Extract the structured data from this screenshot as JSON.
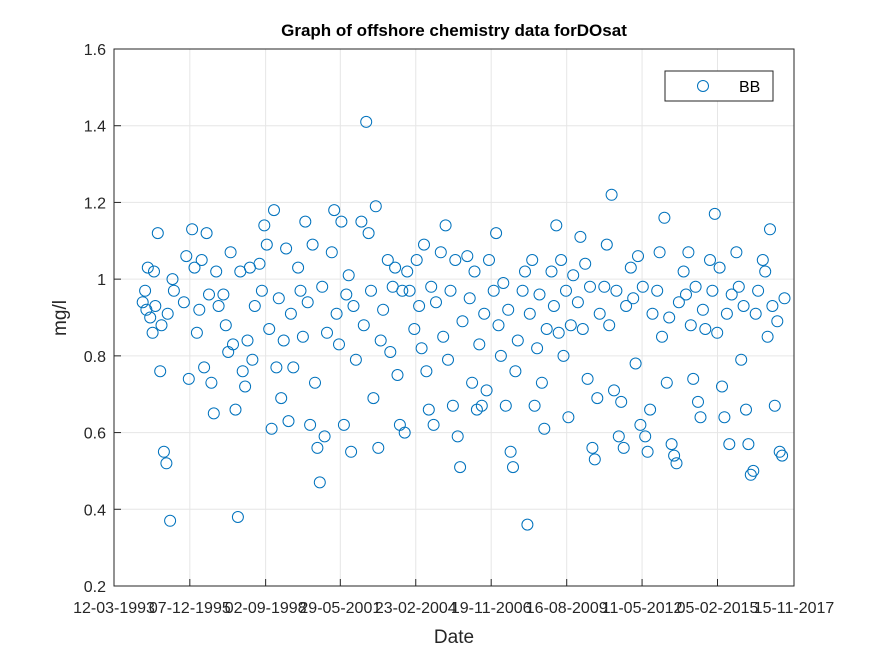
{
  "chart_data": {
    "type": "scatter",
    "title": "Graph of offshore chemistry data forDOsat",
    "xlabel": "Date",
    "ylabel": "mg/l",
    "ylim": [
      0.2,
      1.6
    ],
    "yticks": [
      "0.2",
      "0.4",
      "0.6",
      "0.8",
      "1",
      "1.2",
      "1.4",
      "1.6"
    ],
    "xlim": [
      "1993-03-12",
      "2017-11-15"
    ],
    "xtick_dates": [
      "1993-03-12",
      "1995-12-12",
      "1998-09-12",
      "2001-05-29",
      "2004-02-23",
      "2006-11-19",
      "2009-08-16",
      "2012-05-11",
      "2015-02-05",
      "2017-11-15"
    ],
    "xtick_labels": [
      "12-03-1993",
      "07-12-1995",
      "02-09-1998",
      "29-05-2001",
      "23-02-2004",
      "19-11-2006",
      "16-08-2009",
      "11-05-2012",
      "05-02-2015",
      "15-11-2017"
    ],
    "grid": true,
    "marker": "open-circle",
    "color": "#0072BD",
    "legend": {
      "position": "top-right",
      "entries": [
        "BB"
      ]
    },
    "series": [
      {
        "name": "BB",
        "points": [
          [
            "1994-03-27",
            0.94
          ],
          [
            "1994-04-28",
            0.97
          ],
          [
            "1994-05-16",
            0.92
          ],
          [
            "1994-06-03",
            1.03
          ],
          [
            "1994-07-05",
            0.9
          ],
          [
            "1994-08-06",
            0.86
          ],
          [
            "1994-08-24",
            1.02
          ],
          [
            "1994-09-11",
            0.93
          ],
          [
            "1994-10-13",
            1.12
          ],
          [
            "1994-11-14",
            0.76
          ],
          [
            "1994-12-02",
            0.88
          ],
          [
            "1995-01-03",
            0.55
          ],
          [
            "1995-02-04",
            0.52
          ],
          [
            "1995-02-22",
            0.91
          ],
          [
            "1995-03-26",
            0.37
          ],
          [
            "1995-04-27",
            1.0
          ],
          [
            "1995-05-15",
            0.97
          ],
          [
            "1995-09-25",
            0.94
          ],
          [
            "1995-10-27",
            1.06
          ],
          [
            "1995-11-28",
            0.74
          ],
          [
            "1996-01-11",
            1.13
          ],
          [
            "1996-02-12",
            1.03
          ],
          [
            "1996-03-15",
            0.86
          ],
          [
            "1996-04-16",
            0.92
          ],
          [
            "1996-05-18",
            1.05
          ],
          [
            "1996-06-19",
            0.77
          ],
          [
            "1996-07-21",
            1.12
          ],
          [
            "1996-08-22",
            0.96
          ],
          [
            "1996-09-23",
            0.73
          ],
          [
            "1996-10-25",
            0.65
          ],
          [
            "1996-11-26",
            1.02
          ],
          [
            "1996-12-28",
            0.93
          ],
          [
            "1997-03-01",
            0.96
          ],
          [
            "1997-04-02",
            0.88
          ],
          [
            "1997-05-04",
            0.81
          ],
          [
            "1997-06-05",
            1.07
          ],
          [
            "1997-07-07",
            0.83
          ],
          [
            "1997-08-08",
            0.66
          ],
          [
            "1997-09-09",
            0.38
          ],
          [
            "1997-10-11",
            1.02
          ],
          [
            "1997-11-12",
            0.76
          ],
          [
            "1997-12-14",
            0.72
          ],
          [
            "1998-01-15",
            0.84
          ],
          [
            "1998-02-16",
            1.03
          ],
          [
            "1998-03-20",
            0.79
          ],
          [
            "1998-04-21",
            0.93
          ],
          [
            "1998-06-23",
            1.04
          ],
          [
            "1998-07-25",
            0.97
          ],
          [
            "1998-08-26",
            1.14
          ],
          [
            "1998-09-27",
            1.09
          ],
          [
            "1998-10-29",
            0.87
          ],
          [
            "1998-11-30",
            0.61
          ],
          [
            "1999-01-01",
            1.18
          ],
          [
            "1999-02-02",
            0.77
          ],
          [
            "1999-03-06",
            0.95
          ],
          [
            "1999-04-07",
            0.69
          ],
          [
            "1999-05-09",
            0.84
          ],
          [
            "1999-06-10",
            1.08
          ],
          [
            "1999-07-12",
            0.63
          ],
          [
            "1999-08-13",
            0.91
          ],
          [
            "1999-09-14",
            0.77
          ],
          [
            "1999-11-16",
            1.03
          ],
          [
            "1999-12-18",
            0.97
          ],
          [
            "2000-01-19",
            0.85
          ],
          [
            "2000-02-20",
            1.15
          ],
          [
            "2000-03-23",
            0.94
          ],
          [
            "2000-04-24",
            0.62
          ],
          [
            "2000-05-26",
            1.09
          ],
          [
            "2000-06-27",
            0.73
          ],
          [
            "2000-07-29",
            0.56
          ],
          [
            "2000-08-30",
            0.47
          ],
          [
            "2000-10-01",
            0.98
          ],
          [
            "2000-11-02",
            0.59
          ],
          [
            "2000-12-04",
            0.86
          ],
          [
            "2001-02-05",
            1.07
          ],
          [
            "2001-03-09",
            1.18
          ],
          [
            "2001-04-10",
            0.91
          ],
          [
            "2001-05-12",
            0.83
          ],
          [
            "2001-06-13",
            1.15
          ],
          [
            "2001-07-15",
            0.62
          ],
          [
            "2001-08-16",
            0.96
          ],
          [
            "2001-09-17",
            1.01
          ],
          [
            "2001-10-19",
            0.55
          ],
          [
            "2001-11-20",
            0.93
          ],
          [
            "2001-12-22",
            0.79
          ],
          [
            "2002-03-04",
            1.15
          ],
          [
            "2002-04-05",
            0.88
          ],
          [
            "2002-05-07",
            1.41
          ],
          [
            "2002-06-08",
            1.12
          ],
          [
            "2002-07-10",
            0.97
          ],
          [
            "2002-08-11",
            0.69
          ],
          [
            "2002-09-12",
            1.19
          ],
          [
            "2002-10-14",
            0.56
          ],
          [
            "2002-11-15",
            0.84
          ],
          [
            "2002-12-17",
            0.92
          ],
          [
            "2003-02-18",
            1.05
          ],
          [
            "2003-03-22",
            0.81
          ],
          [
            "2003-04-23",
            0.98
          ],
          [
            "2003-05-25",
            1.03
          ],
          [
            "2003-06-26",
            0.75
          ],
          [
            "2003-07-28",
            0.62
          ],
          [
            "2003-08-29",
            0.97
          ],
          [
            "2003-09-30",
            0.6
          ],
          [
            "2003-11-01",
            1.02
          ],
          [
            "2003-12-03",
            0.97
          ],
          [
            "2004-02-04",
            0.87
          ],
          [
            "2004-03-07",
            1.05
          ],
          [
            "2004-04-08",
            0.93
          ],
          [
            "2004-05-10",
            0.82
          ],
          [
            "2004-06-11",
            1.09
          ],
          [
            "2004-07-13",
            0.76
          ],
          [
            "2004-08-14",
            0.66
          ],
          [
            "2004-09-15",
            0.98
          ],
          [
            "2004-10-17",
            0.62
          ],
          [
            "2004-11-18",
            0.94
          ],
          [
            "2005-01-20",
            1.07
          ],
          [
            "2005-02-21",
            0.85
          ],
          [
            "2005-03-25",
            1.14
          ],
          [
            "2005-04-26",
            0.79
          ],
          [
            "2005-05-28",
            0.97
          ],
          [
            "2005-06-29",
            0.67
          ],
          [
            "2005-07-31",
            1.05
          ],
          [
            "2005-09-01",
            0.59
          ],
          [
            "2005-10-03",
            0.51
          ],
          [
            "2005-11-04",
            0.89
          ],
          [
            "2006-01-06",
            1.06
          ],
          [
            "2006-02-07",
            0.95
          ],
          [
            "2006-03-11",
            0.73
          ],
          [
            "2006-04-12",
            1.02
          ],
          [
            "2006-05-14",
            0.66
          ],
          [
            "2006-06-15",
            0.83
          ],
          [
            "2006-07-17",
            0.67
          ],
          [
            "2006-08-18",
            0.91
          ],
          [
            "2006-09-19",
            0.71
          ],
          [
            "2006-10-21",
            1.05
          ],
          [
            "2006-12-22",
            0.97
          ],
          [
            "2007-01-23",
            1.12
          ],
          [
            "2007-02-24",
            0.88
          ],
          [
            "2007-03-28",
            0.8
          ],
          [
            "2007-04-29",
            0.99
          ],
          [
            "2007-05-31",
            0.67
          ],
          [
            "2007-07-02",
            0.92
          ],
          [
            "2007-08-03",
            0.55
          ],
          [
            "2007-09-04",
            0.51
          ],
          [
            "2007-10-06",
            0.76
          ],
          [
            "2007-11-07",
            0.84
          ],
          [
            "2008-01-09",
            0.97
          ],
          [
            "2008-02-10",
            1.02
          ],
          [
            "2008-03-13",
            0.36
          ],
          [
            "2008-04-14",
            0.91
          ],
          [
            "2008-05-16",
            1.05
          ],
          [
            "2008-06-17",
            0.67
          ],
          [
            "2008-07-19",
            0.82
          ],
          [
            "2008-08-20",
            0.96
          ],
          [
            "2008-09-21",
            0.73
          ],
          [
            "2008-10-23",
            0.61
          ],
          [
            "2008-11-24",
            0.87
          ],
          [
            "2009-01-26",
            1.02
          ],
          [
            "2009-02-27",
            0.93
          ],
          [
            "2009-03-31",
            1.14
          ],
          [
            "2009-05-02",
            0.86
          ],
          [
            "2009-06-03",
            1.05
          ],
          [
            "2009-07-05",
            0.8
          ],
          [
            "2009-08-06",
            0.97
          ],
          [
            "2009-09-07",
            0.64
          ],
          [
            "2009-10-09",
            0.88
          ],
          [
            "2009-11-10",
            1.01
          ],
          [
            "2010-01-12",
            0.94
          ],
          [
            "2010-02-13",
            1.11
          ],
          [
            "2010-03-17",
            0.87
          ],
          [
            "2010-04-18",
            1.04
          ],
          [
            "2010-05-20",
            0.74
          ],
          [
            "2010-06-21",
            0.98
          ],
          [
            "2010-07-23",
            0.56
          ],
          [
            "2010-08-24",
            0.53
          ],
          [
            "2010-09-25",
            0.69
          ],
          [
            "2010-10-27",
            0.91
          ],
          [
            "2010-12-28",
            0.98
          ],
          [
            "2011-01-29",
            1.09
          ],
          [
            "2011-03-02",
            0.88
          ],
          [
            "2011-04-03",
            1.22
          ],
          [
            "2011-05-05",
            0.71
          ],
          [
            "2011-06-06",
            0.97
          ],
          [
            "2011-07-08",
            0.59
          ],
          [
            "2011-08-09",
            0.68
          ],
          [
            "2011-09-10",
            0.56
          ],
          [
            "2011-10-12",
            0.93
          ],
          [
            "2011-12-13",
            1.03
          ],
          [
            "2012-01-14",
            0.95
          ],
          [
            "2012-02-15",
            0.78
          ],
          [
            "2012-03-18",
            1.06
          ],
          [
            "2012-04-19",
            0.62
          ],
          [
            "2012-05-21",
            0.98
          ],
          [
            "2012-06-22",
            0.59
          ],
          [
            "2012-07-24",
            0.55
          ],
          [
            "2012-08-25",
            0.66
          ],
          [
            "2012-09-26",
            0.91
          ],
          [
            "2012-11-27",
            0.97
          ],
          [
            "2012-12-29",
            1.07
          ],
          [
            "2013-01-30",
            0.85
          ],
          [
            "2013-03-03",
            1.16
          ],
          [
            "2013-04-04",
            0.73
          ],
          [
            "2013-05-06",
            0.9
          ],
          [
            "2013-06-07",
            0.57
          ],
          [
            "2013-07-09",
            0.54
          ],
          [
            "2013-08-10",
            0.52
          ],
          [
            "2013-09-11",
            0.94
          ],
          [
            "2013-11-12",
            1.02
          ],
          [
            "2013-12-14",
            0.96
          ],
          [
            "2014-01-15",
            1.07
          ],
          [
            "2014-02-16",
            0.88
          ],
          [
            "2014-03-20",
            0.74
          ],
          [
            "2014-04-21",
            0.98
          ],
          [
            "2014-05-23",
            0.68
          ],
          [
            "2014-06-24",
            0.64
          ],
          [
            "2014-07-26",
            0.92
          ],
          [
            "2014-08-27",
            0.87
          ],
          [
            "2014-10-28",
            1.05
          ],
          [
            "2014-11-29",
            0.97
          ],
          [
            "2014-12-31",
            1.17
          ],
          [
            "2015-02-01",
            0.86
          ],
          [
            "2015-03-05",
            1.03
          ],
          [
            "2015-04-06",
            0.72
          ],
          [
            "2015-05-08",
            0.64
          ],
          [
            "2015-06-09",
            0.91
          ],
          [
            "2015-07-11",
            0.57
          ],
          [
            "2015-08-12",
            0.96
          ],
          [
            "2015-10-13",
            1.07
          ],
          [
            "2015-11-14",
            0.98
          ],
          [
            "2015-12-16",
            0.79
          ],
          [
            "2016-01-17",
            0.93
          ],
          [
            "2016-02-18",
            0.66
          ],
          [
            "2016-03-21",
            0.57
          ],
          [
            "2016-04-22",
            0.49
          ],
          [
            "2016-05-24",
            0.5
          ],
          [
            "2016-06-25",
            0.91
          ],
          [
            "2016-07-27",
            0.97
          ],
          [
            "2016-09-27",
            1.05
          ],
          [
            "2016-10-29",
            1.02
          ],
          [
            "2016-11-30",
            0.85
          ],
          [
            "2017-01-01",
            1.13
          ],
          [
            "2017-02-02",
            0.93
          ],
          [
            "2017-03-06",
            0.67
          ],
          [
            "2017-04-07",
            0.89
          ],
          [
            "2017-05-09",
            0.55
          ],
          [
            "2017-06-10",
            0.54
          ],
          [
            "2017-07-12",
            0.95
          ]
        ]
      }
    ]
  }
}
